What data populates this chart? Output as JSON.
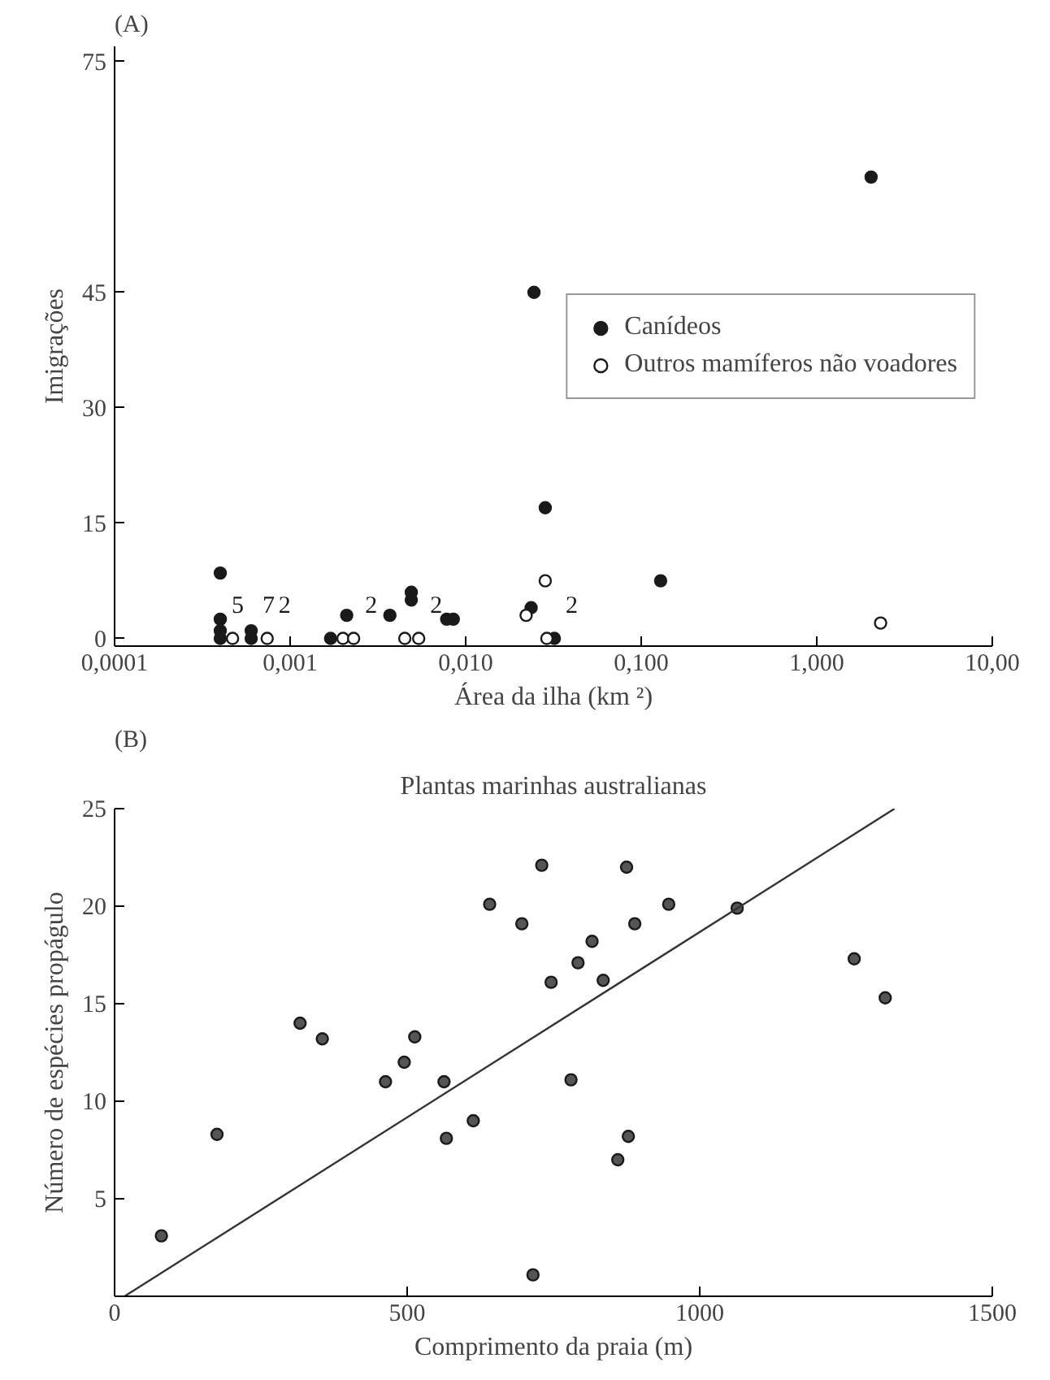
{
  "chart_data": [
    {
      "type": "scatter",
      "title": "(A)",
      "xlabel": "Área da ilha (km ²)",
      "ylabel": "Imigrações",
      "log": "x",
      "marker": "circle",
      "legend": "right",
      "grid": false,
      "xlim": [
        0.0001,
        10
      ],
      "xticks": [
        {
          "value": 0.0001,
          "label": "0,0001"
        },
        {
          "value": 0.001,
          "label": "0,001"
        },
        {
          "value": 0.01,
          "label": "0,010"
        },
        {
          "value": 0.1,
          "label": "0,100"
        },
        {
          "value": 1,
          "label": "1,000"
        },
        {
          "value": 10,
          "label": "10,00"
        }
      ],
      "ylim": [
        -1,
        77
      ],
      "yticks": [
        0,
        15,
        30,
        45,
        75
      ],
      "series": [
        {
          "name": "Canídeos",
          "color": "#1a1a1a",
          "x": [
            0.0004,
            0.0004,
            0.0004,
            0.0004,
            0.0006,
            0.0006,
            0.0017,
            0.0021,
            0.0037,
            0.0049,
            0.0049,
            0.0078,
            0.0085,
            0.0245,
            0.0284,
            0.129,
            0.0236,
            0.032,
            2.04
          ],
          "values": [
            8.5,
            2.5,
            1,
            0,
            1,
            0,
            0,
            3,
            3,
            6,
            5,
            2.5,
            2.5,
            45,
            17,
            7.5,
            4,
            0,
            60
          ]
        },
        {
          "name": "Outros mamíferos não voadores",
          "color": "#ffffff",
          "x": [
            0.00047,
            0.00074,
            0.002,
            0.0023,
            0.0045,
            0.0054,
            0.0221,
            0.0284,
            0.029,
            2.31
          ],
          "values": [
            0,
            0,
            0,
            0,
            0,
            0,
            3,
            7.5,
            0,
            2
          ]
        }
      ],
      "annotations": [
        {
          "text": "5",
          "x": 0.0004,
          "y": 0
        },
        {
          "text": "7",
          "x": 0.0006,
          "y": 0
        },
        {
          "text": "2",
          "x": 0.00074,
          "y": 0
        },
        {
          "text": "2",
          "x": 0.0023,
          "y": 0
        },
        {
          "text": "2",
          "x": 0.0054,
          "y": 0
        },
        {
          "text": "2",
          "x": 0.032,
          "y": 0
        }
      ]
    },
    {
      "type": "scatter",
      "title": "(B)",
      "subtitle": "Plantas marinhas australianas",
      "xlabel": "Comprimento da praia (m)",
      "ylabel": "Número de espécies propágulo",
      "grid": false,
      "xlim": [
        0,
        1500
      ],
      "xticks": [
        0,
        500,
        1000,
        1500
      ],
      "ylim": [
        0,
        25
      ],
      "yticks": [
        5,
        10,
        15,
        20,
        25
      ],
      "series": [
        {
          "color": "#555555",
          "marker": "circle",
          "x": [
            80,
            175,
            317,
            355,
            463,
            495,
            513,
            563,
            567,
            613,
            641,
            696,
            730,
            715,
            746,
            780,
            792,
            816,
            835,
            875,
            860,
            878,
            889,
            947,
            1064,
            1264,
            1317
          ],
          "values": [
            3.1,
            8.3,
            14,
            13.2,
            11,
            12,
            13.3,
            11,
            8.1,
            9,
            20.1,
            19.1,
            22.1,
            1.1,
            16.1,
            11.1,
            17.1,
            18.2,
            16.2,
            22,
            7,
            8.2,
            19.1,
            20.1,
            19.9,
            17.3,
            15.3
          ]
        },
        {
          "type": "line",
          "color": "#333333",
          "x": [
            17,
            1333
          ],
          "values": [
            0,
            25
          ]
        }
      ]
    }
  ]
}
